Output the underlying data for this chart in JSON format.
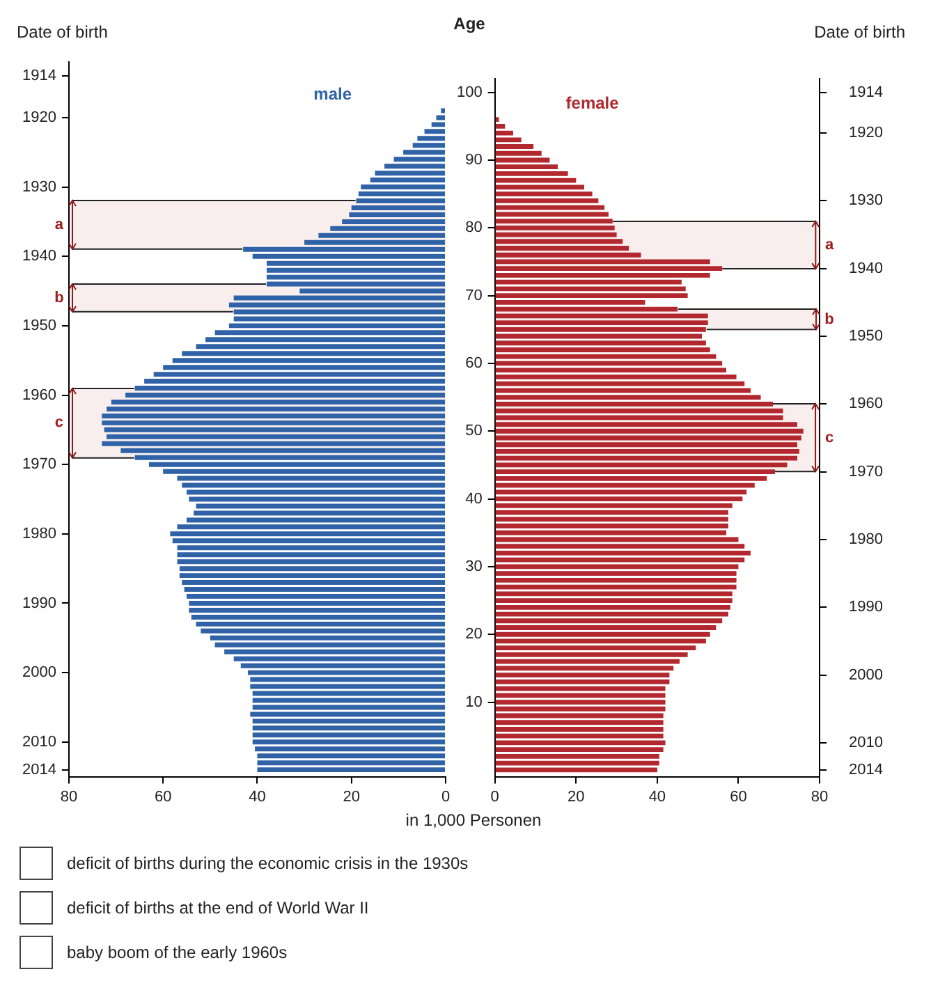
{
  "chart_data": [
    {
      "type": "bar",
      "orientation": "horizontal",
      "ylabel": "Date of birth",
      "x": [
        1914,
        1915,
        1916,
        1917,
        1918,
        1919,
        1920,
        1921,
        1922,
        1923,
        1924,
        1925,
        1926,
        1927,
        1928,
        1929,
        1930,
        1931,
        1932,
        1933,
        1934,
        1935,
        1936,
        1937,
        1938,
        1939,
        1940,
        1941,
        1942,
        1943,
        1944,
        1945,
        1946,
        1947,
        1948,
        1949,
        1950,
        1951,
        1952,
        1953,
        1954,
        1955,
        1956,
        1957,
        1958,
        1959,
        1960,
        1961,
        1962,
        1963,
        1964,
        1965,
        1966,
        1967,
        1968,
        1969,
        1970,
        1971,
        1972,
        1973,
        1974,
        1975,
        1976,
        1977,
        1978,
        1979,
        1980,
        1981,
        1982,
        1983,
        1984,
        1985,
        1986,
        1987,
        1988,
        1989,
        1990,
        1991,
        1992,
        1993,
        1994,
        1995,
        1996,
        1997,
        1998,
        1999,
        2000,
        2001,
        2002,
        2003,
        2004,
        2005,
        2006,
        2007,
        2008,
        2009,
        2010,
        2011,
        2012,
        2013,
        2014
      ],
      "series": [
        {
          "name": "male",
          "color": "#2f62a6",
          "values": [
            0,
            0,
            0,
            0,
            0,
            1,
            2,
            3,
            4.5,
            6,
            7,
            9,
            11,
            13,
            15,
            16,
            18,
            18.5,
            19,
            20,
            20.5,
            22,
            24.5,
            27,
            30,
            43,
            41,
            38,
            38,
            38,
            38,
            31,
            45,
            46,
            45,
            45,
            46,
            49,
            51,
            53,
            56,
            58,
            60,
            62,
            64,
            66,
            68,
            71,
            72,
            73,
            73,
            72.5,
            72,
            73,
            69,
            66,
            63,
            60,
            57,
            56,
            55,
            54.5,
            53,
            53.5,
            55,
            57,
            58.5,
            58,
            57,
            57,
            57,
            56.5,
            56.5,
            56,
            55.5,
            55,
            54.5,
            54.5,
            54,
            53,
            52,
            50,
            49,
            47,
            45,
            43.5,
            42,
            41.5,
            41.5,
            41,
            41,
            41,
            41.5,
            41,
            41,
            41,
            41,
            40.5,
            40,
            40,
            40
          ]
        }
      ],
      "xlim": [
        80,
        0
      ],
      "xticks": [
        80,
        60,
        40,
        20,
        0
      ],
      "ylim": [
        2015,
        1912
      ],
      "yticks": [
        1914,
        1920,
        1930,
        1940,
        1950,
        1960,
        1970,
        1980,
        1990,
        2000,
        2010,
        2014
      ],
      "bands": [
        {
          "axis": "y",
          "from": 1932,
          "to": 1939,
          "label": "a"
        },
        {
          "axis": "y",
          "from": 1944,
          "to": 1948,
          "label": "b"
        },
        {
          "axis": "y",
          "from": 1959,
          "to": 1969,
          "label": "c"
        }
      ],
      "annotations": [
        "deficit of births during the economic crisis in the 1930s",
        "deficit of births at the end of World War II",
        "baby boom of the early 1960s"
      ]
    },
    {
      "type": "bar",
      "orientation": "horizontal",
      "ylabel": "Age",
      "xlabel": "in 1,000 Personen",
      "y2label": "Date of birth",
      "x": [
        100,
        99,
        98,
        97,
        96,
        95,
        94,
        93,
        92,
        91,
        90,
        89,
        88,
        87,
        86,
        85,
        84,
        83,
        82,
        81,
        80,
        79,
        78,
        77,
        76,
        75,
        74,
        73,
        72,
        71,
        70,
        69,
        68,
        67,
        66,
        65,
        64,
        63,
        62,
        61,
        60,
        59,
        58,
        57,
        56,
        55,
        54,
        53,
        52,
        51,
        50,
        49,
        48,
        47,
        46,
        45,
        44,
        43,
        42,
        41,
        40,
        39,
        38,
        37,
        36,
        35,
        34,
        33,
        32,
        31,
        30,
        29,
        28,
        27,
        26,
        25,
        24,
        23,
        22,
        21,
        20,
        19,
        18,
        17,
        16,
        15,
        14,
        13,
        12,
        11,
        10,
        9,
        8,
        7,
        6,
        5,
        4,
        3,
        2,
        1,
        0
      ],
      "series": [
        {
          "name": "female",
          "color": "#b2282e",
          "values": [
            0,
            0,
            0,
            0,
            1,
            2.5,
            4.5,
            6.5,
            9.5,
            11.5,
            13.5,
            15.5,
            18,
            20,
            22,
            24,
            25.5,
            27,
            28,
            29,
            29.5,
            30,
            31.5,
            33,
            36,
            53,
            56,
            53,
            46,
            47,
            47.5,
            37,
            45,
            52.5,
            52.5,
            52,
            51,
            52,
            53,
            54.5,
            56,
            57,
            59.5,
            61.5,
            63,
            65.5,
            68.5,
            71,
            71,
            74.5,
            76,
            75.5,
            74.5,
            75,
            74.5,
            72,
            69,
            67,
            64,
            62,
            61,
            58.5,
            57.5,
            57.5,
            57.5,
            57,
            60,
            61.5,
            63,
            61.5,
            60,
            59.5,
            59.5,
            59.5,
            58.5,
            58.5,
            58,
            57.5,
            56,
            54.5,
            53,
            52,
            49.5,
            47.5,
            45.5,
            44,
            43,
            43,
            42,
            42,
            42,
            42,
            41.5,
            41.5,
            41.5,
            41.5,
            42,
            41.5,
            40.5,
            40.5,
            40
          ]
        }
      ],
      "xlim": [
        0,
        80
      ],
      "xticks": [
        0,
        20,
        40,
        60,
        80
      ],
      "ylim": [
        -1,
        102
      ],
      "yticks": [
        10,
        20,
        30,
        40,
        50,
        60,
        70,
        80,
        90,
        100
      ],
      "y2lim": [
        2015,
        1912
      ],
      "y2ticks": [
        1914,
        1920,
        1930,
        1940,
        1950,
        1960,
        1970,
        1980,
        1990,
        2000,
        2010,
        2014
      ],
      "bands": [
        {
          "axis": "y2",
          "from": 1933,
          "to": 1940,
          "label": "a"
        },
        {
          "axis": "y2",
          "from": 1946,
          "to": 1949,
          "label": "b"
        },
        {
          "axis": "y2",
          "from": 1960,
          "to": 1970,
          "label": "c"
        }
      ]
    }
  ]
}
